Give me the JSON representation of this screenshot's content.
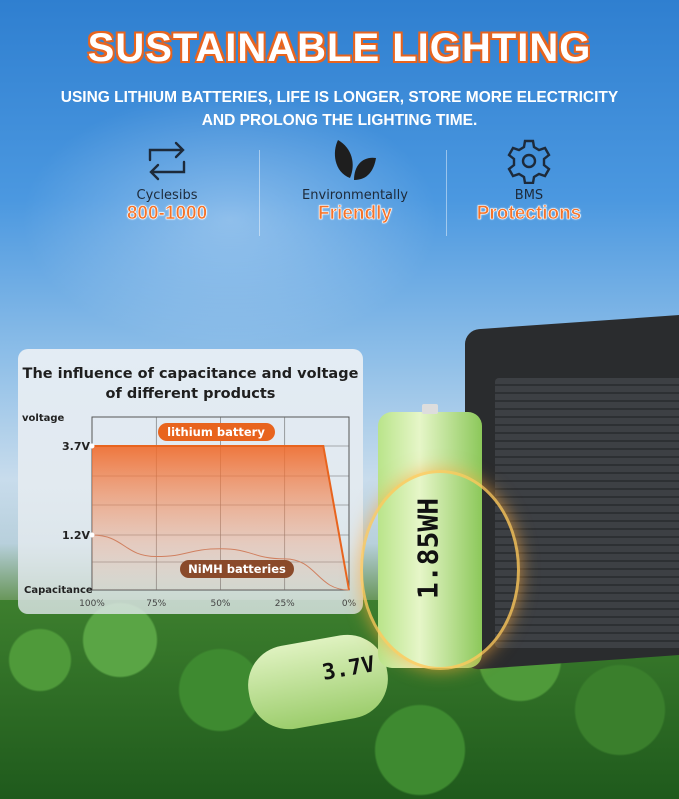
{
  "header": {
    "title": "SUSTAINABLE LIGHTING",
    "subtitle_line1": "USING LITHIUM BATTERIES, LIFE IS LONGER, STORE MORE ELECTRICITY",
    "subtitle_line2": "AND PROLONG THE LIGHTING TIME."
  },
  "features": [
    {
      "icon": "cycle-arrows-icon",
      "label": "Cyclesibs",
      "value": "800-1000"
    },
    {
      "icon": "leaf-icon",
      "label": "Environmentally",
      "value": "Friendly"
    },
    {
      "icon": "gear-icon",
      "label": "BMS",
      "value": "Protections"
    }
  ],
  "colors": {
    "accent": "#f4732a",
    "lithium": "#e8641e",
    "nimh": "#8a4a2a"
  },
  "batteries": {
    "large_label": "1.85WH",
    "small_label": "3.7V"
  },
  "chart_data": {
    "type": "line",
    "title": "The influence of capacitance and voltage of different products",
    "ylabel": "voltage",
    "xlabel": "Capacitance",
    "x_ticks": [
      "100%",
      "75%",
      "50%",
      "25%",
      "0%"
    ],
    "y_ticks": [
      "3.7V",
      "1.2V"
    ],
    "x_reversed": true,
    "grid": true,
    "series": [
      {
        "name": "lithium battery",
        "x": [
          100,
          10,
          0
        ],
        "y": [
          3.7,
          3.7,
          0
        ],
        "filled": true
      },
      {
        "name": "NiMH batteries",
        "x": [
          100,
          75,
          50,
          25,
          0
        ],
        "y": [
          1.2,
          0.73,
          0.9,
          0.68,
          0
        ]
      }
    ]
  }
}
